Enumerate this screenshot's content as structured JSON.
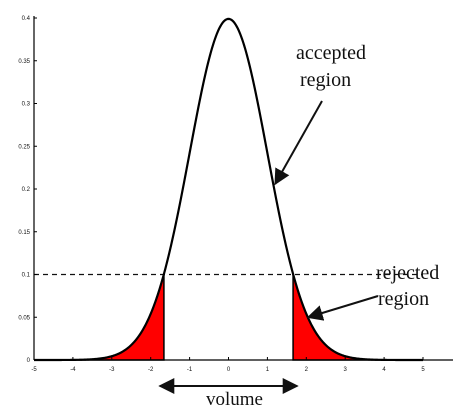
{
  "chart_data": {
    "type": "area",
    "title": "",
    "xlabel": "volume",
    "ylabel": "",
    "xlim": [
      -5,
      5
    ],
    "ylim": [
      0,
      0.4
    ],
    "x_ticks": [
      -5,
      -4,
      -3,
      -2,
      -1,
      0,
      1,
      2,
      3,
      4,
      5
    ],
    "x_tick_labels": [
      "-5",
      "-4",
      "-3",
      "-2",
      "-1",
      "0",
      "1",
      "2",
      "3",
      "4",
      "5"
    ],
    "y_ticks": [
      0,
      0.05,
      0.1,
      0.15,
      0.2,
      0.25,
      0.3,
      0.35,
      0.4
    ],
    "y_tick_labels": [
      "0",
      "0.05",
      "0.1",
      "0.15",
      "0.2",
      "0.25",
      "0.3",
      "0.35",
      "0.4"
    ],
    "curve": {
      "distribution": "standard normal",
      "mean": 0,
      "sd": 1
    },
    "threshold_density": 0.1,
    "cutoffs": [
      -1.66,
      1.66
    ],
    "rejected_fill": "#ff0000",
    "grid": false,
    "annotations": [
      {
        "text_lines": [
          "accepted",
          "region"
        ],
        "points_to": {
          "x": 1.15,
          "y": 0.206
        }
      },
      {
        "text_lines": [
          "rejected",
          "region"
        ],
        "points_to": {
          "x": 2.05,
          "y": 0.05
        }
      }
    ]
  }
}
